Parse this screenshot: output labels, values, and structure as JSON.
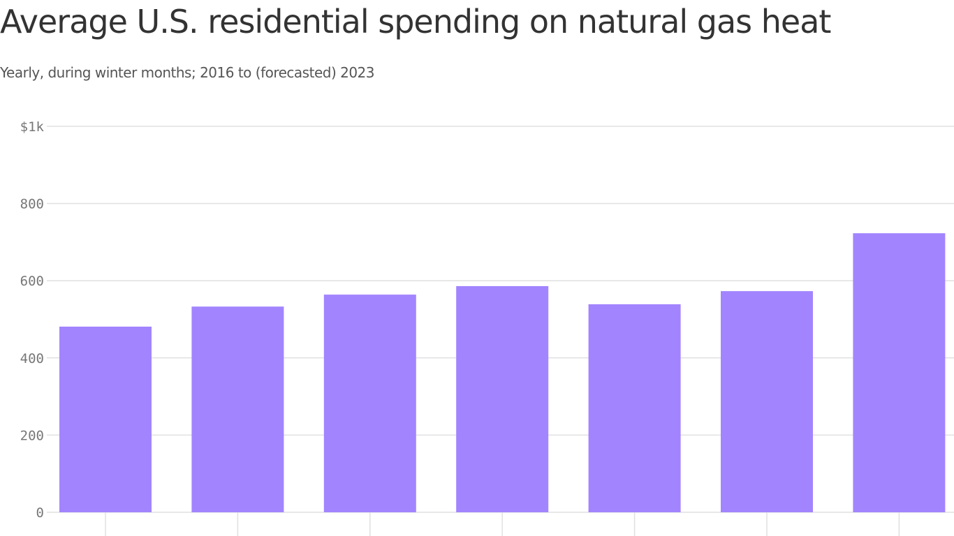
{
  "chart_data": {
    "type": "bar",
    "title": "Average U.S. residential spending on natural gas heat",
    "subtitle": "Yearly, during winter months; 2016 to (forecasted) 2023",
    "xlabel": "",
    "ylabel": "",
    "ylim": [
      0,
      1000
    ],
    "yticks": [
      {
        "value": 0,
        "label": "0"
      },
      {
        "value": 200,
        "label": "200"
      },
      {
        "value": 400,
        "label": "400"
      },
      {
        "value": 600,
        "label": "600"
      },
      {
        "value": 800,
        "label": "800"
      },
      {
        "value": 1000,
        "label": "$1k"
      }
    ],
    "values": [
      481,
      533,
      564,
      586,
      539,
      573,
      723
    ],
    "grid": true,
    "bar_color": "#a284ff",
    "grid_color": "#e0e0e0"
  }
}
